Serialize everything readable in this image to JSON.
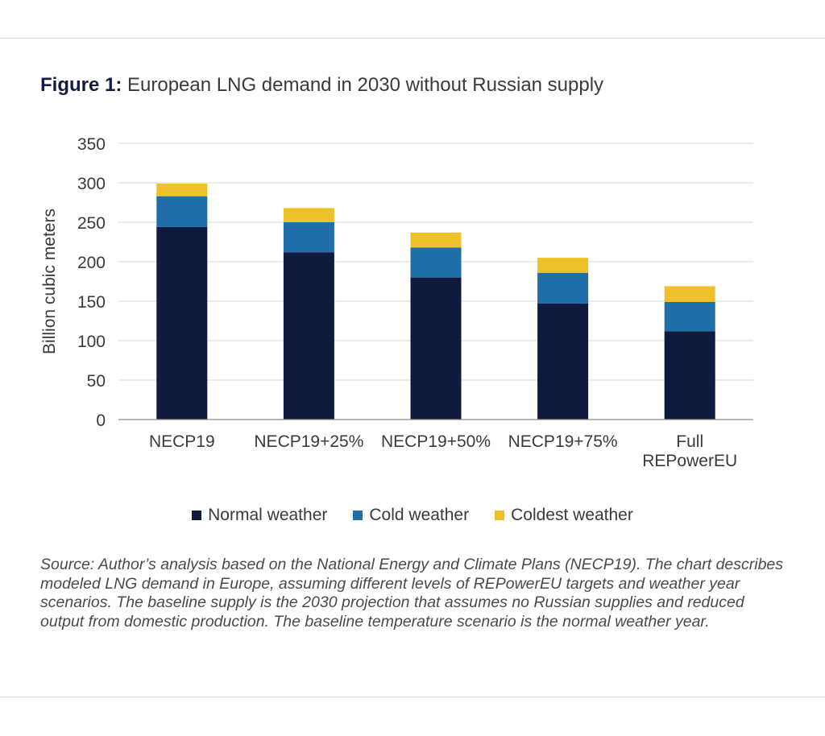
{
  "figure": {
    "label": "Figure 1:",
    "title": "European LNG demand in 2030 without Russian supply"
  },
  "colors": {
    "normal": "#0f1a3e",
    "cold": "#1f6ea8",
    "coldest": "#eec12a",
    "grid": "#d9d9d9",
    "axis": "#8c8c8c",
    "text": "#3a3a3a"
  },
  "chart_data": {
    "type": "bar",
    "stacked": true,
    "categories": [
      "NECP19",
      "NECP19+25%",
      "NECP19+50%",
      "NECP19+75%",
      "Full REPowerEU"
    ],
    "category_lines": [
      [
        "NECP19"
      ],
      [
        "NECP19+25%"
      ],
      [
        "NECP19+50%"
      ],
      [
        "NECP19+75%"
      ],
      [
        "Full",
        "REPowerEU"
      ]
    ],
    "series": [
      {
        "name": "Normal weather",
        "values": [
          244,
          212,
          180,
          147,
          112
        ],
        "color": "#0f1a3e"
      },
      {
        "name": "Cold weather",
        "values": [
          39,
          38,
          38,
          39,
          37
        ],
        "color": "#1f6ea8"
      },
      {
        "name": "Coldest weather",
        "values": [
          16,
          18,
          19,
          19,
          20
        ],
        "color": "#eec12a"
      }
    ],
    "ylabel": "Billion cubic meters",
    "xlabel": "",
    "ylim": [
      0,
      350
    ],
    "yticks": [
      0,
      50,
      100,
      150,
      200,
      250,
      300,
      350
    ],
    "grid": true,
    "legend_position": "bottom"
  },
  "source_text": "Source: Author’s analysis based on the National Energy and Climate Plans (NECP19). The chart describes modeled LNG demand in Europe, assuming different levels of REPowerEU targets and weather year scenarios. The baseline supply is the 2030 projection that assumes no Russian supplies and reduced output from domestic production. The baseline temperature scenario is the normal weather year."
}
